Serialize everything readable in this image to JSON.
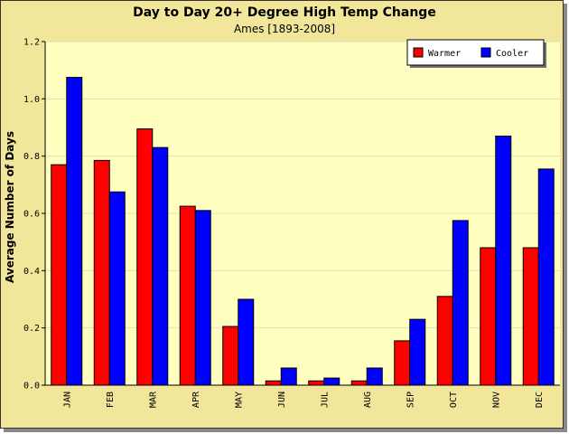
{
  "chart_data": {
    "type": "bar",
    "title": "Day to Day 20+ Degree High Temp Change",
    "subtitle": "Ames [1893-2008]",
    "ylabel": "Average Number of Days",
    "xlabel": "",
    "ylim": [
      0,
      1.2
    ],
    "yticks": [
      "0.0",
      "0.2",
      "0.4",
      "0.6",
      "0.8",
      "1.0",
      "1.2"
    ],
    "grid": true,
    "legend_position": "top-right",
    "categories": [
      "JAN",
      "FEB",
      "MAR",
      "APR",
      "MAY",
      "JUN",
      "JUL",
      "AUG",
      "SEP",
      "OCT",
      "NOV",
      "DEC"
    ],
    "series": [
      {
        "name": "Warmer",
        "color": "#ff0000",
        "values": [
          0.77,
          0.785,
          0.895,
          0.625,
          0.205,
          0.015,
          0.015,
          0.015,
          0.155,
          0.31,
          0.48,
          0.48
        ]
      },
      {
        "name": "Cooler",
        "color": "#0000ff",
        "values": [
          1.075,
          0.675,
          0.83,
          0.61,
          0.3,
          0.06,
          0.025,
          0.06,
          0.23,
          0.575,
          0.87,
          0.755
        ]
      }
    ]
  }
}
